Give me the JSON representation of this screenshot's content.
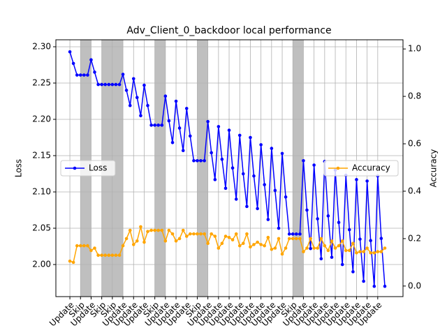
{
  "chart_data": {
    "type": "line",
    "title": "Adv_Client_0_backdoor local performance",
    "ylabel": "Loss",
    "y2label": "Accuracy",
    "x": [
      0,
      0.33,
      0.67,
      1,
      1.33,
      1.67,
      2,
      2.33,
      2.67,
      3,
      3.33,
      3.67,
      4,
      4.33,
      4.67,
      5,
      5.33,
      5.67,
      6,
      6.33,
      6.67,
      7,
      7.33,
      7.67,
      8,
      8.33,
      8.67,
      9,
      9.33,
      9.67,
      10,
      10.33,
      10.67,
      11,
      11.33,
      11.67,
      12,
      12.33,
      12.67,
      13,
      13.33,
      13.67,
      14,
      14.33,
      14.67,
      15,
      15.33,
      15.67,
      16,
      16.33,
      16.67,
      17,
      17.33,
      17.67,
      18,
      18.33,
      18.67,
      19,
      19.33,
      19.67,
      20,
      20.33,
      20.67,
      21,
      21.33,
      21.67,
      22,
      22.33,
      22.67,
      23,
      23.33,
      23.67,
      24,
      24.33,
      24.67,
      25,
      25.33,
      25.67,
      26,
      26.33,
      26.67,
      27,
      27.33,
      27.67,
      28,
      28.33,
      28.67,
      29,
      29.33,
      29.67
    ],
    "series": [
      {
        "name": "Loss",
        "color": "#0000ff",
        "axis": "y",
        "values": [
          2.293,
          2.277,
          2.261,
          2.261,
          2.261,
          2.261,
          2.282,
          2.265,
          2.248,
          2.248,
          2.248,
          2.248,
          2.248,
          2.248,
          2.248,
          2.262,
          2.24,
          2.219,
          2.256,
          2.23,
          2.205,
          2.247,
          2.219,
          2.192,
          2.192,
          2.192,
          2.192,
          2.232,
          2.198,
          2.168,
          2.225,
          2.188,
          2.157,
          2.215,
          2.177,
          2.143,
          2.143,
          2.143,
          2.143,
          2.197,
          2.154,
          2.117,
          2.19,
          2.145,
          2.105,
          2.185,
          2.133,
          2.09,
          2.178,
          2.125,
          2.08,
          2.175,
          2.122,
          2.077,
          2.165,
          2.11,
          2.062,
          2.16,
          2.102,
          2.05,
          2.153,
          2.093,
          2.042,
          2.042,
          2.042,
          2.042,
          2.143,
          2.075,
          2.022,
          2.137,
          2.063,
          2.008,
          2.142,
          2.067,
          2.01,
          2.13,
          2.058,
          2.0,
          2.123,
          2.048,
          1.99,
          2.117,
          2.035,
          1.977,
          2.115,
          2.033,
          1.97,
          2.122,
          2.036,
          1.97
        ]
      },
      {
        "name": "Accuracy",
        "color": "#ffa500",
        "axis": "y2",
        "values": [
          0.105,
          0.1,
          0.17,
          0.17,
          0.17,
          0.17,
          0.15,
          0.16,
          0.13,
          0.13,
          0.13,
          0.13,
          0.13,
          0.13,
          0.13,
          0.17,
          0.2,
          0.235,
          0.175,
          0.19,
          0.25,
          0.185,
          0.23,
          0.235,
          0.235,
          0.235,
          0.235,
          0.19,
          0.235,
          0.22,
          0.19,
          0.2,
          0.235,
          0.21,
          0.22,
          0.22,
          0.22,
          0.22,
          0.22,
          0.18,
          0.22,
          0.21,
          0.16,
          0.18,
          0.21,
          0.205,
          0.195,
          0.22,
          0.17,
          0.18,
          0.22,
          0.165,
          0.175,
          0.185,
          0.175,
          0.17,
          0.205,
          0.155,
          0.16,
          0.2,
          0.135,
          0.16,
          0.2,
          0.2,
          0.2,
          0.2,
          0.145,
          0.16,
          0.2,
          0.16,
          0.16,
          0.2,
          0.17,
          0.15,
          0.19,
          0.16,
          0.17,
          0.19,
          0.15,
          0.15,
          0.18,
          0.14,
          0.145,
          0.145,
          0.16,
          0.14,
          0.14,
          0.145,
          0.145,
          0.16
        ]
      }
    ],
    "shaded_rounds": [
      1,
      3,
      4,
      8,
      12,
      21
    ],
    "xlim": [
      -1.32,
      31.38
    ],
    "xticks": [
      {
        "value": 0,
        "label": "Update"
      },
      {
        "value": 1,
        "label": "Skip"
      },
      {
        "value": 2,
        "label": "Update"
      },
      {
        "value": 3,
        "label": "Skip"
      },
      {
        "value": 4,
        "label": "Skip"
      },
      {
        "value": 5,
        "label": "Update"
      },
      {
        "value": 6,
        "label": "Update"
      },
      {
        "value": 7,
        "label": "Update"
      },
      {
        "value": 8,
        "label": "Skip"
      },
      {
        "value": 9,
        "label": "Update"
      },
      {
        "value": 10,
        "label": "Update"
      },
      {
        "value": 11,
        "label": "Update"
      },
      {
        "value": 12,
        "label": "Skip"
      },
      {
        "value": 13,
        "label": "Update"
      },
      {
        "value": 14,
        "label": "Update"
      },
      {
        "value": 15,
        "label": "Update"
      },
      {
        "value": 16,
        "label": "Update"
      },
      {
        "value": 17,
        "label": "Update"
      },
      {
        "value": 18,
        "label": "Update"
      },
      {
        "value": 19,
        "label": "Update"
      },
      {
        "value": 20,
        "label": "Update"
      },
      {
        "value": 21,
        "label": "Skip"
      },
      {
        "value": 22,
        "label": "Update"
      },
      {
        "value": 23,
        "label": "Update"
      },
      {
        "value": 24,
        "label": "Update"
      },
      {
        "value": 25,
        "label": "Update"
      },
      {
        "value": 26,
        "label": "Update"
      },
      {
        "value": 27,
        "label": "Update"
      },
      {
        "value": 28,
        "label": "Update"
      },
      {
        "value": 29,
        "label": "Update"
      }
    ],
    "ylim": [
      1.9558,
      2.3096
    ],
    "yticks": [
      {
        "value": 2,
        "label": "2.00"
      },
      {
        "value": 2.05,
        "label": "2.05"
      },
      {
        "value": 2.1,
        "label": "2.10"
      },
      {
        "value": 2.15,
        "label": "2.15"
      },
      {
        "value": 2.2,
        "label": "2.20"
      },
      {
        "value": 2.25,
        "label": "2.25"
      },
      {
        "value": 2.3,
        "label": "2.30"
      }
    ],
    "y2lim": [
      -0.0446,
      1.0387
    ],
    "y2ticks": [
      {
        "value": 0,
        "label": "0.0"
      },
      {
        "value": 0.2,
        "label": "0.2"
      },
      {
        "value": 0.4,
        "label": "0.4"
      },
      {
        "value": 0.6,
        "label": "0.6"
      },
      {
        "value": 0.8,
        "label": "0.8"
      },
      {
        "value": 1,
        "label": "1.0"
      }
    ],
    "grid": true,
    "legend_loc": [
      "center left",
      "center right"
    ]
  }
}
